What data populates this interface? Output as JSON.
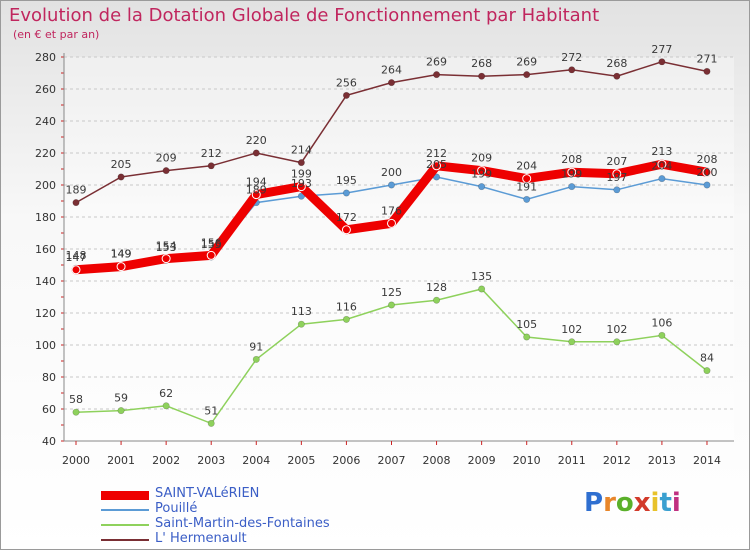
{
  "title": "Evolution de la Dotation Globale de Fonctionnement par Habitant",
  "subtitle": "(en € et par an)",
  "logo": {
    "text": "Proxiti",
    "letters": [
      "P",
      "r",
      "o",
      "x",
      "i",
      "t",
      "i"
    ],
    "colors": [
      "#2f6fd0",
      "#e8862a",
      "#5ab02a",
      "#d23a2a",
      "#e8c22a",
      "#3aa0d0",
      "#c03080"
    ]
  },
  "chart_data": {
    "type": "line",
    "title": "Evolution de la Dotation Globale de Fonctionnement par Habitant",
    "ylabel": "(en € et par an)",
    "xlabel": "",
    "x": [
      "2000",
      "2001",
      "2002",
      "2003",
      "2004",
      "2005",
      "2006",
      "2007",
      "2008",
      "2009",
      "2010",
      "2011",
      "2012",
      "2013",
      "2014"
    ],
    "yticks": [
      40,
      60,
      80,
      100,
      120,
      140,
      160,
      180,
      200,
      220,
      240,
      260,
      280
    ],
    "ylim": [
      40,
      280
    ],
    "grid": "horizontal dashed",
    "legend": "bottom-left",
    "series": [
      {
        "name": "L' Hermenault",
        "color": "#7a2f34",
        "emphasis": false,
        "values": [
          189,
          205,
          209,
          212,
          220,
          214,
          256,
          264,
          269,
          268,
          269,
          272,
          268,
          277,
          271
        ],
        "labels": [
          "189",
          "205",
          "209",
          "212",
          "220",
          "214",
          "256",
          "264",
          "269",
          "268",
          "269",
          "272",
          "268",
          "277",
          "271"
        ]
      },
      {
        "name": "Saint-Martin-des-Fontaines",
        "color": "#8ed15c",
        "emphasis": false,
        "values": [
          58,
          59,
          62,
          51,
          91,
          113,
          116,
          125,
          128,
          135,
          105,
          102,
          102,
          106,
          84
        ],
        "labels": [
          "58",
          "59",
          "62",
          "51",
          "91",
          "113",
          "116",
          "125",
          "128",
          "135",
          "105",
          "102",
          "102",
          "106",
          "84"
        ]
      },
      {
        "name": "Pouillé",
        "color": "#5b9bd5",
        "emphasis": false,
        "values": [
          148,
          149,
          153,
          155,
          189,
          193,
          195,
          200,
          205,
          199,
          191,
          199,
          197,
          204,
          200
        ],
        "labels": [
          "148",
          "149",
          "153",
          "155",
          "189",
          "193",
          "195",
          "200",
          "205",
          "199",
          "191",
          "199",
          "197",
          "204",
          "200"
        ]
      },
      {
        "name": "SAINT-VALéRIEN",
        "color": "#ee0000",
        "emphasis": true,
        "values": [
          147,
          149,
          154,
          156,
          194,
          199,
          172,
          176,
          212,
          209,
          204,
          208,
          207,
          213,
          208
        ],
        "labels": [
          "147",
          "149",
          "154",
          "156",
          "194",
          "199",
          "172",
          "176",
          "212",
          "209",
          "204",
          "208",
          "207",
          "213",
          "208"
        ]
      }
    ],
    "legend_order": [
      "SAINT-VALéRIEN",
      "Pouillé",
      "Saint-Martin-des-Fontaines",
      "L' Hermenault"
    ]
  }
}
